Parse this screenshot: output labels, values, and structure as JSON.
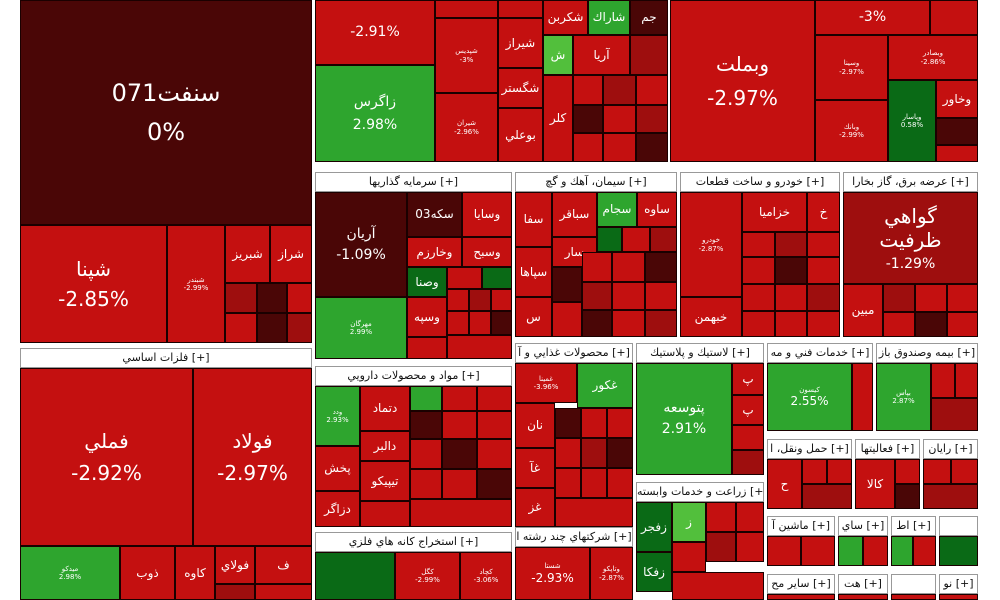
{
  "colors": {
    "deep_red": "#4a0606",
    "red": "#c41010",
    "dark_red": "#9e0e0e",
    "green": "#2ea52e",
    "dark_green": "#0a6a16",
    "header_bg": "#ffffff"
  },
  "sectors": {
    "refinery": {
      "header": "",
      "tiles": {
        "sanfat": {
          "name": "سنفت071",
          "pct": "0%"
        },
        "shepna": {
          "name": "شپنا",
          "pct": "-2.85%"
        },
        "shebandar": {
          "name": "شبندر",
          "pct": "-2.99%"
        },
        "shebriz": {
          "name": "شبريز",
          "pct": ""
        },
        "sharaz": {
          "name": "شراز",
          "pct": ""
        }
      }
    },
    "chemical": {
      "header": "",
      "tiles": {
        "top_left": {
          "name": "",
          "pct": "-2.91%"
        },
        "zagros": {
          "name": "زاگرس",
          "pct": "2.98%"
        },
        "shiraz": {
          "name": "شيراز",
          "pct": ""
        },
        "shegostar": {
          "name": "شگستر",
          "pct": ""
        },
        "buali": {
          "name": "بوعلي",
          "pct": ""
        },
        "shekrin": {
          "name": "شكربن",
          "pct": ""
        },
        "sharak": {
          "name": "شاراك",
          "pct": ""
        },
        "aria": {
          "name": "آريا",
          "pct": ""
        },
        "kalar": {
          "name": "كلر",
          "pct": ""
        },
        "shepadis": {
          "name": "شپديس",
          "pct": "-3%"
        },
        "shiran": {
          "name": "شيران",
          "pct": "-2.96%"
        },
        "jam": {
          "name": "جم",
          "pct": ""
        },
        "sh": {
          "name": "ش",
          "pct": ""
        }
      }
    },
    "banks": {
      "header": "",
      "tiles": {
        "vabmelat": {
          "name": "وبملت",
          "pct": "-2.97%"
        },
        "top": {
          "name": "",
          "pct": "-3%"
        },
        "vakhavar": {
          "name": "وخاور",
          "pct": ""
        },
        "vabsader": {
          "name": "وبصادر",
          "pct": "-2.86%"
        },
        "vasina": {
          "name": "وسينا",
          "pct": "-2.97%"
        },
        "vabank": {
          "name": "وبانك",
          "pct": "-2.99%"
        },
        "vapasar": {
          "name": "وپاسار",
          "pct": "0.58%"
        }
      }
    },
    "investment": {
      "header": "سرمايه گذاريها [+]",
      "tiles": {
        "arian": {
          "name": "آريان",
          "pct": "-1.09%"
        },
        "mehregan": {
          "name": "مهرگان",
          "pct": "2.99%"
        },
        "vasaya": {
          "name": "وسايا",
          "pct": ""
        },
        "sekke": {
          "name": "سكه03",
          "pct": ""
        },
        "vakharazm": {
          "name": "وخارزم",
          "pct": ""
        },
        "vasbah": {
          "name": "وسبح",
          "pct": ""
        },
        "vasna": {
          "name": "وصنا",
          "pct": ""
        },
        "vasape": {
          "name": "وسپه",
          "pct": ""
        }
      }
    },
    "cement": {
      "header": "سيمان، آهك و گچ [+]",
      "tiles": {
        "saveh": {
          "name": "ساوه",
          "pct": ""
        },
        "sajam": {
          "name": "سجام",
          "pct": ""
        },
        "sabaghar": {
          "name": "سباقر",
          "pct": ""
        },
        "sefa": {
          "name": "سفا",
          "pct": ""
        },
        "sepaha": {
          "name": "سپاها",
          "pct": ""
        },
        "sar": {
          "name": "سار",
          "pct": ""
        },
        "ses": {
          "name": "س",
          "pct": ""
        }
      }
    },
    "auto": {
      "header": "خودرو و ساخت قطعات [+]",
      "tiles": {
        "khodro": {
          "name": "خودرو",
          "pct": "-2.87%"
        },
        "khazamia": {
          "name": "خزاميا",
          "pct": ""
        },
        "kh": {
          "name": "خ",
          "pct": ""
        },
        "khebahman": {
          "name": "خبهمن",
          "pct": ""
        }
      }
    },
    "utilities": {
      "header": "عرضه برق، گاز بخارا [+]",
      "tiles": {
        "gavahi": {
          "name": "گواهي ظرفيت",
          "pct": "-1.29%"
        },
        "mobin": {
          "name": "مبين",
          "pct": ""
        }
      }
    },
    "metals": {
      "header": "فلزات اساسي [+]",
      "tiles": {
        "famli": {
          "name": "فملي",
          "pct": "-2.92%"
        },
        "fulad": {
          "name": "فولاد",
          "pct": "-2.97%"
        },
        "midko": {
          "name": "ميدكو",
          "pct": "2.98%"
        },
        "zob": {
          "name": "ذوب",
          "pct": ""
        },
        "kave": {
          "name": "كاوه",
          "pct": ""
        },
        "fulay": {
          "name": "فولاي",
          "pct": ""
        },
        "f": {
          "name": "ف",
          "pct": ""
        }
      }
    },
    "pharma": {
      "header": "مواد و محصولات دارويي [+]",
      "tiles": {
        "dtemad": {
          "name": "دتماد",
          "pct": ""
        },
        "dalber": {
          "name": "دالبر",
          "pct": ""
        },
        "pakhsh": {
          "name": "پخش",
          "pct": ""
        },
        "tipico": {
          "name": "تيپيكو",
          "pct": ""
        },
        "dzagar": {
          "name": "دزاگر",
          "pct": ""
        },
        "vdd": {
          "name": "ودد",
          "pct": "2.93%"
        }
      }
    },
    "food": {
      "header": "محصولات غذايي و آ [+]",
      "tiles": {
        "ghakur": {
          "name": "غكور",
          "pct": ""
        },
        "naan": {
          "name": "نان",
          "pct": ""
        },
        "gha": {
          "name": "غآ",
          "pct": ""
        },
        "ghz": {
          "name": "غز",
          "pct": ""
        },
        "ghmina": {
          "name": "غمينا",
          "pct": "-3.96%"
        }
      }
    },
    "rubber": {
      "header": "لاستيك و پلاستيك [+]",
      "tiles": {
        "petoose": {
          "name": "پتوسعه",
          "pct": "2.91%"
        },
        "p1": {
          "name": "پ",
          "pct": ""
        },
        "p2": {
          "name": "پ",
          "pct": ""
        }
      }
    },
    "technical": {
      "header": "خدمات فني و مه [+]",
      "tiles": {
        "kisun": {
          "name": "كيسون",
          "pct": "2.55%"
        }
      }
    },
    "insurance": {
      "header": "بيمه وصندوق باز [+]",
      "tiles": {
        "bipas": {
          "name": "بپاس",
          "pct": "2.87%"
        }
      }
    },
    "transport": {
      "header": "حمل ونقل، ا [+]",
      "tiles": {
        "h": {
          "name": "ح",
          "pct": ""
        }
      }
    },
    "activities": {
      "header": "فعاليتها [+]",
      "tiles": {
        "kala": {
          "name": "كالا",
          "pct": ""
        }
      }
    },
    "computer": {
      "header": "رايان [+]",
      "tiles": {}
    },
    "mining": {
      "header": "استخراج كانه هاي فلزي [+]",
      "tiles": {
        "kagol": {
          "name": "كگل",
          "pct": "-2.99%"
        },
        "kchad": {
          "name": "كچاد",
          "pct": "-3.06%"
        }
      }
    },
    "agri": {
      "header": "زراعت و خدمات وابسته [+]",
      "tiles": {
        "zfajr": {
          "name": "زفجر",
          "pct": ""
        },
        "zfka": {
          "name": "زفكا",
          "pct": ""
        },
        "z": {
          "name": "ز",
          "pct": ""
        }
      }
    },
    "multi": {
      "header": "شركتهاي چند رشته ا [+]",
      "tiles": {
        "shasta": {
          "name": "شستا",
          "pct": "-2.93%"
        },
        "vtapko": {
          "name": "وتاپكو",
          "pct": "-2.87%"
        }
      }
    },
    "machinery": {
      "header": "ماشين آ [+]",
      "tiles": {}
    },
    "misc1": {
      "header": "ساي [+]",
      "tiles": {}
    },
    "misc2": {
      "header": "اط [+]",
      "tiles": {}
    },
    "misc3": {
      "header": "ساير مح [+]",
      "tiles": {}
    },
    "misc4": {
      "header": "هت [+]",
      "tiles": {}
    },
    "misc5": {
      "header": "نو [+]",
      "tiles": {}
    }
  }
}
